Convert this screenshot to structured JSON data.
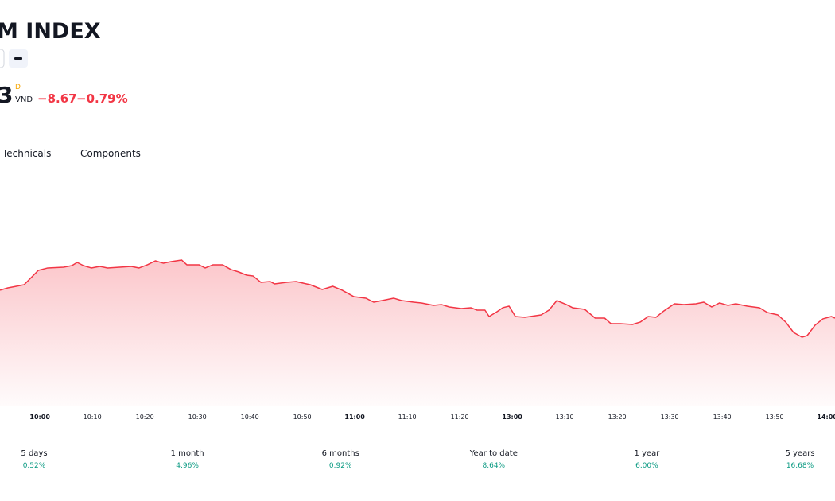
{
  "header": {
    "title": "M INDEX",
    "price": "3",
    "price_flag": "D",
    "currency": "VND",
    "change": "−8.67",
    "change_percent": "−0.79%"
  },
  "tabs": [
    "Technicals",
    "Components"
  ],
  "chart_data": {
    "type": "area",
    "x": [
      -7.6,
      -6.1,
      -4.5,
      -3.0,
      -1.8,
      -0.3,
      1.5,
      4.5,
      6.1,
      7.1,
      8.3,
      9.8,
      11.4,
      12.9,
      15.2,
      17.4,
      18.9,
      20.5,
      22.0,
      23.5,
      25.0,
      27.0,
      28.0,
      30.3,
      31.5,
      33.0,
      34.8,
      36.4,
      37.9,
      39.4,
      40.6,
      42.1,
      43.9,
      44.7,
      47.0,
      48.8,
      51.5,
      53.8,
      55.8,
      57.6,
      59.8,
      62.1,
      63.6,
      65.2,
      67.4,
      68.9,
      71.2,
      72.7,
      75.0,
      76.5,
      78.0,
      80.3,
      82.1,
      83.3,
      84.8,
      85.6,
      87.1,
      88.2,
      89.4,
      90.6,
      92.4,
      95.5,
      97.0,
      98.5,
      100.3,
      101.5,
      103.8,
      105.8,
      107.6,
      108.8,
      110.6,
      112.9,
      114.4,
      115.9,
      117.4,
      118.9,
      120.9,
      122.7,
      125.0,
      126.5,
      128.0,
      129.5,
      131.1,
      132.6,
      134.8,
      137.1,
      138.6,
      140.6,
      142.1,
      143.6,
      145.2,
      146.2,
      147.7,
      149.2,
      150.8,
      151.5
    ],
    "series": [
      {
        "color": "#f23645",
        "values": [
          1093.13,
          1093.5,
          1093.75,
          1094,
          1095,
          1096.25,
          1096.63,
          1096.75,
          1097,
          1097.5,
          1097,
          1096.63,
          1096.88,
          1096.63,
          1096.75,
          1096.88,
          1096.63,
          1097.13,
          1097.75,
          1097.38,
          1097.63,
          1097.88,
          1097.13,
          1097.13,
          1096.63,
          1097.13,
          1097.13,
          1096.38,
          1096,
          1095.5,
          1095.38,
          1094.38,
          1094.5,
          1094.13,
          1094.38,
          1094.5,
          1094,
          1093.25,
          1093.75,
          1093.13,
          1092.13,
          1091.88,
          1091.25,
          1091.5,
          1091.88,
          1091.5,
          1091.25,
          1091.13,
          1090.75,
          1090.88,
          1090.5,
          1090.25,
          1090.38,
          1090,
          1090,
          1089,
          1089.75,
          1090.38,
          1090.63,
          1089,
          1088.88,
          1089.25,
          1090,
          1091.5,
          1090.88,
          1090.38,
          1090.13,
          1088.75,
          1088.75,
          1087.88,
          1087.88,
          1087.75,
          1088.13,
          1089,
          1088.88,
          1089.88,
          1091,
          1090.88,
          1091,
          1091.25,
          1090.5,
          1091.13,
          1090.75,
          1091,
          1090.63,
          1090.38,
          1089.63,
          1089.25,
          1088.13,
          1086.5,
          1085.75,
          1086,
          1087.63,
          1088.63,
          1089,
          1088.75
        ]
      }
    ],
    "xlim": [
      -7.6,
      151.5
    ],
    "ylim": [
      1075,
      1112.5
    ],
    "xticks": [
      {
        "value": 0,
        "label": "10:00"
      },
      {
        "value": 10,
        "label": "10:10"
      },
      {
        "value": 20,
        "label": "10:20"
      },
      {
        "value": 30,
        "label": "10:30"
      },
      {
        "value": 40,
        "label": "10:40"
      },
      {
        "value": 50,
        "label": "10:50"
      },
      {
        "value": 60,
        "label": "11:00"
      },
      {
        "value": 70,
        "label": "11:10"
      },
      {
        "value": 80,
        "label": "11:20"
      },
      {
        "value": 90,
        "label": "13:00"
      },
      {
        "value": 100,
        "label": "13:10"
      },
      {
        "value": 110,
        "label": "13:20"
      },
      {
        "value": 120,
        "label": "13:30"
      },
      {
        "value": 130,
        "label": "13:40"
      },
      {
        "value": 140,
        "label": "13:50"
      },
      {
        "value": 150,
        "label": "14:00"
      }
    ]
  },
  "performance": [
    {
      "period": "5 days",
      "change": "0.52%"
    },
    {
      "period": "1 month",
      "change": "4.96%"
    },
    {
      "period": "6 months",
      "change": "0.92%"
    },
    {
      "period": "Year to date",
      "change": "8.64%"
    },
    {
      "period": "1 year",
      "change": "6.00%"
    },
    {
      "period": "5 years",
      "change": "16.68%"
    }
  ]
}
